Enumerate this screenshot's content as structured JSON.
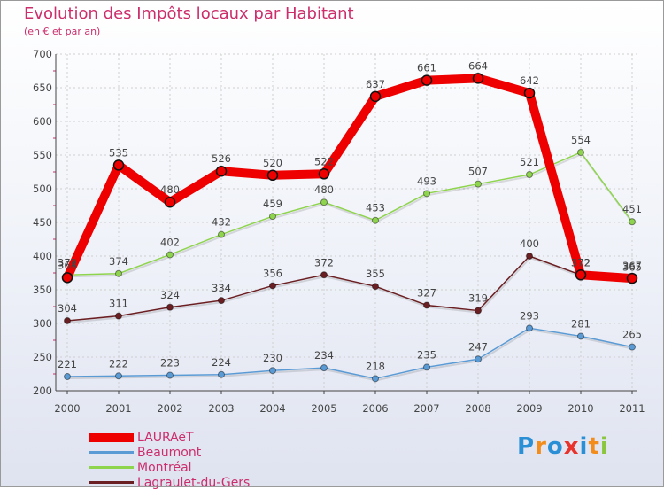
{
  "header": {
    "title": "Evolution des Impôts locaux par Habitant",
    "subtitle": "(en € et par an)"
  },
  "chart_data": {
    "type": "line",
    "x": [
      "2000",
      "2001",
      "2002",
      "2003",
      "2004",
      "2005",
      "2006",
      "2007",
      "2008",
      "2009",
      "2010",
      "2011"
    ],
    "ylim": [
      200,
      700
    ],
    "yticks": [
      200,
      250,
      300,
      350,
      400,
      450,
      500,
      550,
      600,
      650,
      700
    ],
    "grid": true,
    "legend_position": "bottom-left",
    "series": [
      {
        "name": "Lagraulet-du-Gers",
        "color": "#6b1f22",
        "values": [
          304,
          311,
          324,
          334,
          356,
          372,
          355,
          327,
          319,
          400,
          372,
          365
        ]
      },
      {
        "name": "Beaumont",
        "color": "#5b9bd5",
        "values": [
          221,
          222,
          223,
          224,
          230,
          234,
          218,
          235,
          247,
          293,
          281,
          265
        ]
      },
      {
        "name": "Montréal",
        "color": "#8fd44d",
        "values": [
          372,
          374,
          402,
          432,
          459,
          480,
          453,
          493,
          507,
          521,
          554,
          451
        ]
      },
      {
        "name": "LAURAëT",
        "color": "#ee0000",
        "values": [
          368,
          535,
          480,
          526,
          520,
          522,
          637,
          661,
          664,
          642,
          372,
          367
        ]
      }
    ]
  },
  "legend": {
    "items": [
      {
        "label": "LAURAëT",
        "color": "#ee0000"
      },
      {
        "label": "Beaumont",
        "color": "#5b9bd5"
      },
      {
        "label": "Montréal",
        "color": "#8fd44d"
      },
      {
        "label": "Lagraulet-du-Gers",
        "color": "#6b1f22"
      }
    ]
  },
  "logo": {
    "letters": [
      "P",
      "r",
      "o",
      "x",
      "i",
      "t",
      "i"
    ],
    "colors": [
      "#2b8fd6",
      "#f28c1b",
      "#2b8fd6",
      "#e8322b",
      "#2b8fd6",
      "#f28c1b",
      "#8cc63f"
    ]
  }
}
